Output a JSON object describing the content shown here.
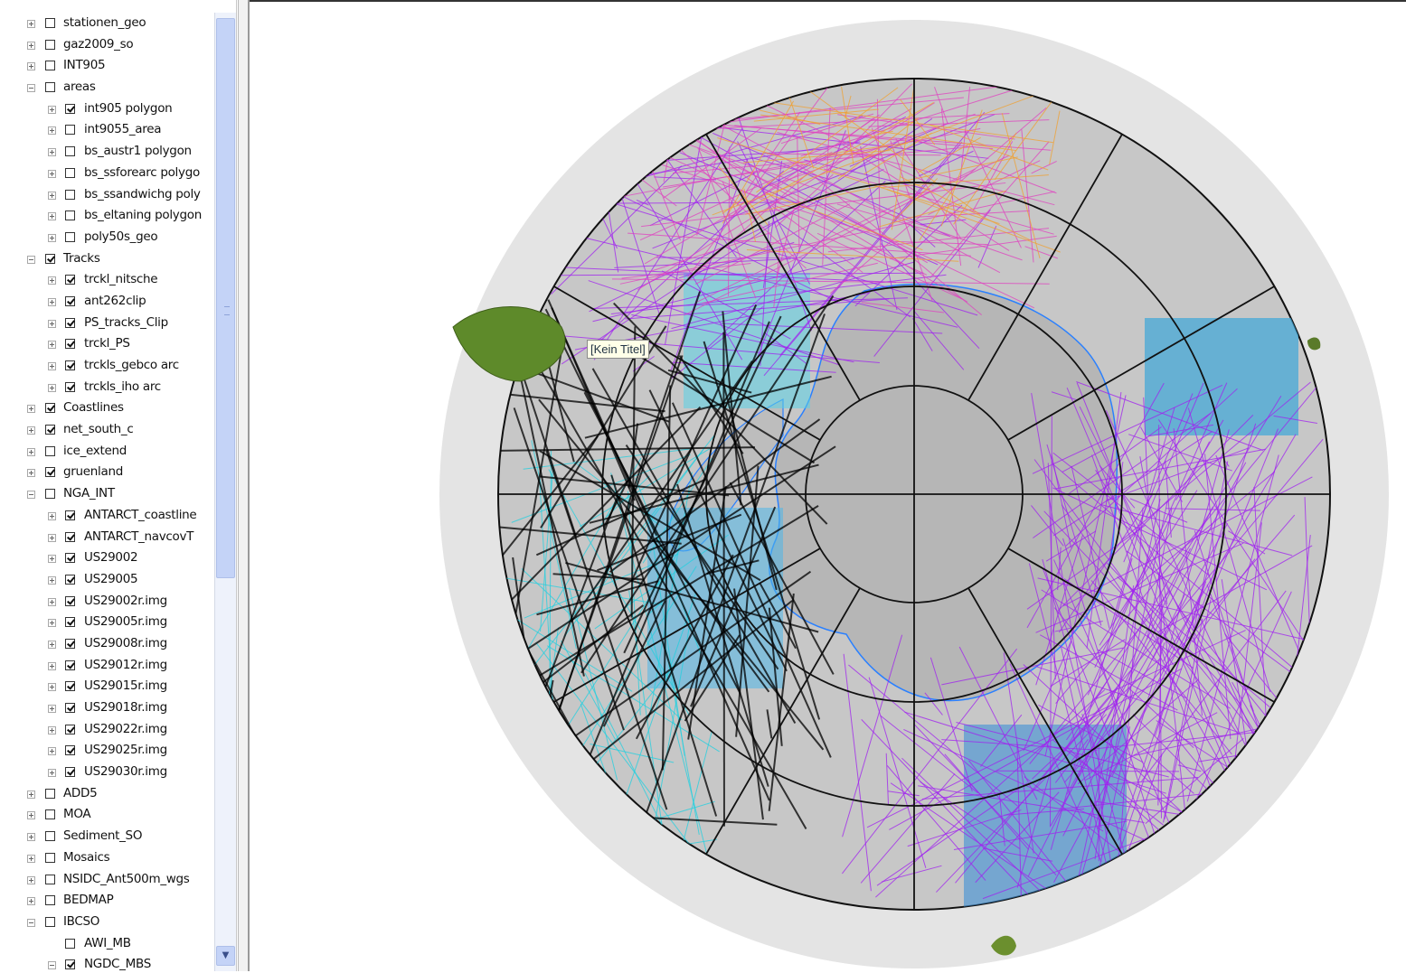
{
  "toc": {
    "layers": [
      {
        "label": "stationen_geo",
        "level": 0,
        "expander": "plus",
        "checked": false
      },
      {
        "label": "gaz2009_so",
        "level": 0,
        "expander": "plus",
        "checked": false
      },
      {
        "label": "INT905",
        "level": 0,
        "expander": "plus",
        "checked": false
      },
      {
        "label": "areas",
        "level": 0,
        "expander": "minus",
        "checked": false
      },
      {
        "label": "int905 polygon",
        "level": 1,
        "expander": "plus",
        "checked": true
      },
      {
        "label": "int9055_area",
        "level": 1,
        "expander": "plus",
        "checked": false
      },
      {
        "label": "bs_austr1 polygon",
        "level": 1,
        "expander": "plus",
        "checked": false
      },
      {
        "label": "bs_ssforearc polygo",
        "level": 1,
        "expander": "plus",
        "checked": false
      },
      {
        "label": "bs_ssandwichg poly",
        "level": 1,
        "expander": "plus",
        "checked": false
      },
      {
        "label": "bs_eltaning polygon",
        "level": 1,
        "expander": "plus",
        "checked": false
      },
      {
        "label": "poly50s_geo",
        "level": 1,
        "expander": "plus",
        "checked": false
      },
      {
        "label": "Tracks",
        "level": 0,
        "expander": "minus",
        "checked": true
      },
      {
        "label": "trckl_nitsche",
        "level": 1,
        "expander": "plus",
        "checked": true
      },
      {
        "label": "ant262clip",
        "level": 1,
        "expander": "plus",
        "checked": true
      },
      {
        "label": "PS_tracks_Clip",
        "level": 1,
        "expander": "plus",
        "checked": true
      },
      {
        "label": "trckl_PS",
        "level": 1,
        "expander": "plus",
        "checked": true
      },
      {
        "label": "trckls_gebco arc",
        "level": 1,
        "expander": "plus",
        "checked": true
      },
      {
        "label": "trckls_iho arc",
        "level": 1,
        "expander": "plus",
        "checked": true
      },
      {
        "label": "Coastlines",
        "level": 0,
        "expander": "plus",
        "checked": true
      },
      {
        "label": "net_south_c",
        "level": 0,
        "expander": "plus",
        "checked": true
      },
      {
        "label": "ice_extend",
        "level": 0,
        "expander": "plus",
        "checked": false
      },
      {
        "label": "gruenland",
        "level": 0,
        "expander": "plus",
        "checked": true
      },
      {
        "label": "NGA_INT",
        "level": 0,
        "expander": "minus",
        "checked": false
      },
      {
        "label": "ANTARCT_coastline",
        "level": 1,
        "expander": "plus",
        "checked": true
      },
      {
        "label": "ANTARCT_navcovT",
        "level": 1,
        "expander": "plus",
        "checked": true
      },
      {
        "label": "US29002",
        "level": 1,
        "expander": "plus",
        "checked": true
      },
      {
        "label": "US29005",
        "level": 1,
        "expander": "plus",
        "checked": true
      },
      {
        "label": "US29002r.img",
        "level": 1,
        "expander": "plus",
        "checked": true
      },
      {
        "label": "US29005r.img",
        "level": 1,
        "expander": "plus",
        "checked": true
      },
      {
        "label": "US29008r.img",
        "level": 1,
        "expander": "plus",
        "checked": true
      },
      {
        "label": "US29012r.img",
        "level": 1,
        "expander": "plus",
        "checked": true
      },
      {
        "label": "US29015r.img",
        "level": 1,
        "expander": "plus",
        "checked": true
      },
      {
        "label": "US29018r.img",
        "level": 1,
        "expander": "plus",
        "checked": true
      },
      {
        "label": "US29022r.img",
        "level": 1,
        "expander": "plus",
        "checked": true
      },
      {
        "label": "US29025r.img",
        "level": 1,
        "expander": "plus",
        "checked": true
      },
      {
        "label": "US29030r.img",
        "level": 1,
        "expander": "plus",
        "checked": true
      },
      {
        "label": "ADD5",
        "level": 0,
        "expander": "plus",
        "checked": false
      },
      {
        "label": "MOA",
        "level": 0,
        "expander": "plus",
        "checked": false
      },
      {
        "label": "Sediment_SO",
        "level": 0,
        "expander": "plus",
        "checked": false
      },
      {
        "label": "Mosaics",
        "level": 0,
        "expander": "plus",
        "checked": false
      },
      {
        "label": "NSIDC_Ant500m_wgs",
        "level": 0,
        "expander": "plus",
        "checked": false
      },
      {
        "label": "BEDMAP",
        "level": 0,
        "expander": "plus",
        "checked": false
      },
      {
        "label": "IBCSO",
        "level": 0,
        "expander": "minus",
        "checked": false
      },
      {
        "label": "AWI_MB",
        "level": 1,
        "expander": "none",
        "checked": false
      },
      {
        "label": "NGDC_MBS",
        "level": 1,
        "expander": "minus",
        "checked": true
      }
    ],
    "scroll_down_glyph": "▼"
  },
  "map": {
    "layout_title": "[Kein Titel]",
    "colors": {
      "background_ring": "#e4e4e4",
      "ocean": "#c7c7c7",
      "continent": "#b6b6b6",
      "graticule": "#111111",
      "track_purple": "#a020f0",
      "track_magenta": "#e040c0",
      "track_cyan": "#20d0e0",
      "track_black": "#000000",
      "land_green": "#5e8a2a",
      "coast_blue": "#2a80ff"
    }
  }
}
